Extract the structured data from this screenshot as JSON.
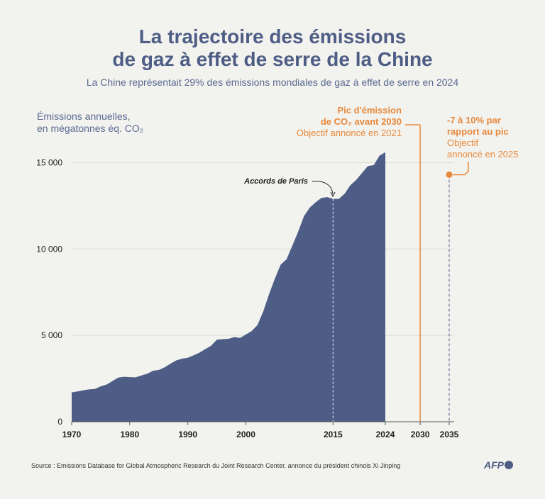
{
  "title_line1": "La trajectoire des émissions",
  "title_line2": "de gaz à effet de serre de la Chine",
  "subtitle": "La Chine représentait 29% des émissions mondiales de gaz à effet de serre en 2024",
  "ylabel_line1": "Émissions annuelles,",
  "ylabel_line2": "en mégatonnes éq. CO₂",
  "annotation_2030": {
    "line1": "Pic d'émission",
    "line2": "de CO₂ avant 2030",
    "line3": "Objectif annoncé en 2021"
  },
  "annotation_2035": {
    "line1": "-7 à 10% par",
    "line2": "rapport au pic",
    "line3": "Objectif",
    "line4": "annoncé en 2025"
  },
  "paris_label": "Accords de Paris",
  "source": "Source : Emissions Database for Global Atmospheric Research du Joint Research Center, annonce du président chinois Xi Jinping",
  "logo": "AFP",
  "colors": {
    "area": "#4e5d85",
    "orange": "#e8893c",
    "text": "#4e5d85"
  },
  "chart_data": {
    "type": "area",
    "title": "La trajectoire des émissions de gaz à effet de serre de la Chine",
    "ylabel": "Émissions annuelles, en mégatonnes éq. CO₂",
    "xlim": [
      1970,
      2035
    ],
    "ylim": [
      0,
      16000
    ],
    "yticks": [
      0,
      5000,
      10000,
      15000
    ],
    "ytick_labels": [
      "0",
      "5 000",
      "10 000",
      "15 000"
    ],
    "xticks": [
      1970,
      1980,
      1990,
      2000,
      2015,
      2024,
      2030,
      2035
    ],
    "x": [
      1970,
      1971,
      1972,
      1973,
      1974,
      1975,
      1976,
      1977,
      1978,
      1979,
      1980,
      1981,
      1982,
      1983,
      1984,
      1985,
      1986,
      1987,
      1988,
      1989,
      1990,
      1991,
      1992,
      1993,
      1994,
      1995,
      1996,
      1997,
      1998,
      1999,
      2000,
      2001,
      2002,
      2003,
      2004,
      2005,
      2006,
      2007,
      2008,
      2009,
      2010,
      2011,
      2012,
      2013,
      2014,
      2015,
      2016,
      2017,
      2018,
      2019,
      2020,
      2021,
      2022,
      2023,
      2024
    ],
    "values": [
      1700,
      1750,
      1820,
      1870,
      1900,
      2050,
      2150,
      2350,
      2550,
      2600,
      2580,
      2570,
      2680,
      2780,
      2950,
      3000,
      3150,
      3350,
      3550,
      3650,
      3700,
      3850,
      4000,
      4200,
      4400,
      4750,
      4780,
      4800,
      4900,
      4850,
      5050,
      5250,
      5600,
      6400,
      7400,
      8300,
      9100,
      9400,
      10200,
      11000,
      11900,
      12400,
      12700,
      12950,
      13000,
      12900,
      12900,
      13200,
      13700,
      14000,
      14400,
      14800,
      14850,
      15400,
      15600
    ],
    "annotations": [
      {
        "x": 2015,
        "label": "Accords de Paris"
      },
      {
        "x": 2030,
        "label": "Pic d'émission de CO₂ avant 2030"
      },
      {
        "x": 2035,
        "y": 14300,
        "label": "-7 à 10% par rapport au pic"
      }
    ]
  }
}
